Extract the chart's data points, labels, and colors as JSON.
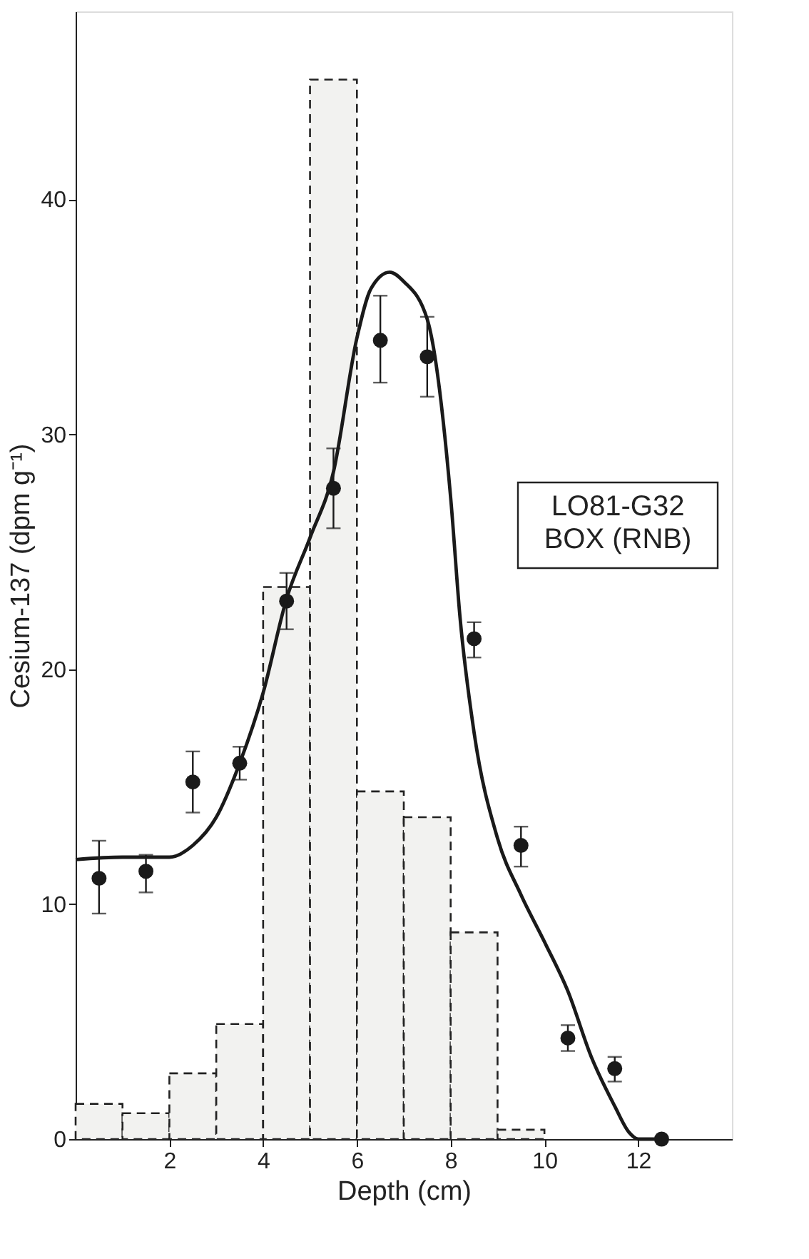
{
  "chart_data": {
    "type": "scatter",
    "xlabel": "Depth (cm)",
    "ylabel": "Cesium-137 (dpm g⁻¹)",
    "xlim": [
      0,
      14
    ],
    "xticks": [
      2,
      4,
      6,
      8,
      10,
      12
    ],
    "ylim": [
      0,
      48
    ],
    "yticks": [
      0,
      10,
      20,
      30,
      40
    ],
    "grid": false,
    "annotations": [
      "LO81-G32\nBOX (RNB)"
    ],
    "series": [
      {
        "type": "histogram",
        "color": "#f2f2f0",
        "line_style": "dashed",
        "bins": [
          0,
          1,
          2,
          3,
          4,
          5,
          6,
          7,
          8,
          9,
          10
        ],
        "values": [
          1.5,
          1.1,
          2.8,
          4.9,
          23.5,
          45.1,
          14.8,
          13.7,
          8.8,
          0.4
        ]
      },
      {
        "color": "#1a1a1a",
        "marker": "circle",
        "x": [
          0.5,
          1.5,
          2.5,
          3.5,
          4.5,
          5.5,
          6.5,
          7.5,
          8.5,
          9.5,
          10.5,
          11.5,
          12.5
        ],
        "values": [
          11.1,
          11.4,
          15.2,
          16.0,
          22.9,
          27.7,
          34.0,
          33.3,
          21.3,
          12.5,
          4.3,
          3.0,
          0
        ],
        "errors": [
          [
            9.6,
            12.7
          ],
          [
            10.5,
            12.1
          ],
          [
            13.9,
            16.5
          ],
          [
            15.3,
            16.7
          ],
          [
            21.7,
            24.1
          ],
          [
            26.0,
            29.4
          ],
          [
            32.2,
            35.9
          ],
          [
            31.6,
            35.0
          ],
          [
            20.5,
            22.0
          ],
          [
            11.6,
            13.3
          ],
          [
            3.75,
            4.85
          ],
          [
            2.45,
            3.5
          ],
          null
        ]
      },
      {
        "type": "line",
        "color": "#1a1a1a",
        "line_style": "solid",
        "x": [
          0,
          1,
          2,
          2.5,
          3,
          3.5,
          4,
          4.5,
          5,
          5.5,
          6,
          6.3,
          6.7,
          7,
          7.5,
          8,
          8.2,
          8.5,
          9,
          9.5,
          10,
          10.5,
          11,
          11.5,
          11.8,
          12,
          12.5
        ],
        "values": [
          11.9,
          12.0,
          12.0,
          12.5,
          13.7,
          16.0,
          19.0,
          23.0,
          25.6,
          28.4,
          34.1,
          36.2,
          36.9,
          36.5,
          34.9,
          27.3,
          22.2,
          17.3,
          12.8,
          10.4,
          8.4,
          6.3,
          3.5,
          1.4,
          0.3,
          0,
          0
        ]
      }
    ]
  }
}
